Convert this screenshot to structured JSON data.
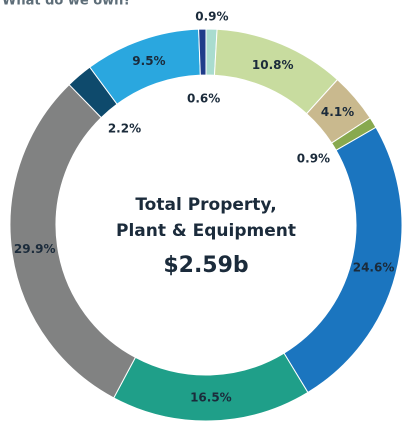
{
  "chart_data": {
    "type": "donut",
    "title": "What do we own?",
    "center_lines": [
      "Total Property,",
      "Plant & Equipment"
    ],
    "center_value": "$2.59b",
    "values": [
      0.9,
      10.8,
      4.1,
      0.9,
      24.6,
      16.5,
      29.9,
      2.2,
      9.5,
      0.6
    ],
    "value_labels": [
      "0.9%",
      "10.8%",
      "4.1%",
      "0.9%",
      "24.6%",
      "16.5%",
      "29.9%",
      "2.2%",
      "9.5%",
      "0.6%"
    ],
    "colors": [
      "#a9dccf",
      "#c8dc9f",
      "#c9b98e",
      "#88a94f",
      "#1b75bf",
      "#1f9f89",
      "#818282",
      "#0e4a6c",
      "#2aa7df",
      "#203d8b"
    ]
  }
}
